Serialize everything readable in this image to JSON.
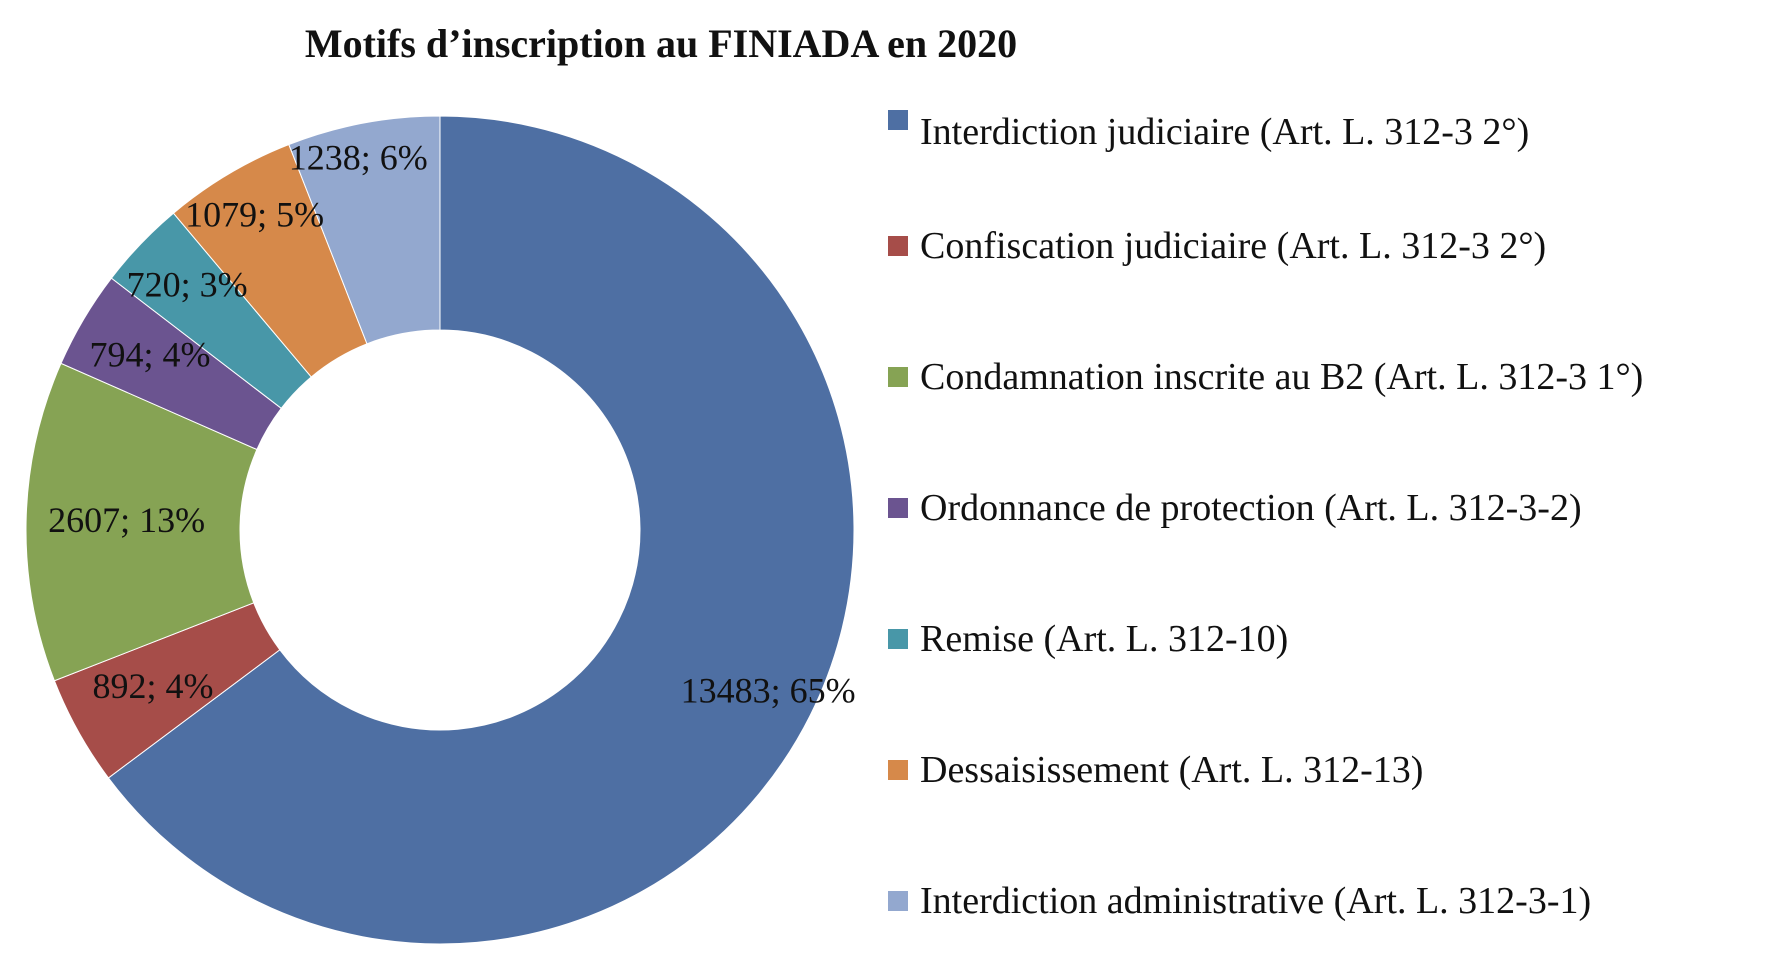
{
  "chart_data": {
    "type": "pie",
    "title": "Motifs d’inscription au FINIADA en 2020",
    "donut": true,
    "legend_position": "right",
    "slices": [
      {
        "label": "Interdiction judiciaire (Art. L. 312-3 2°)",
        "value": 13483,
        "percent": 65,
        "data_label": "13483; 65%",
        "color": "#4e6fa3"
      },
      {
        "label": "Confiscation judiciaire (Art. L. 312-3 2°)",
        "value": 892,
        "percent": 4,
        "data_label": "892; 4%",
        "color": "#a64d49"
      },
      {
        "label": "Condamnation inscrite au B2 (Art. L. 312-3 1°)",
        "value": 2607,
        "percent": 13,
        "data_label": "2607; 13%",
        "color": "#86a354"
      },
      {
        "label": "Ordonnance de protection (Art. L. 312-3-2)",
        "value": 794,
        "percent": 4,
        "data_label": "794; 4%",
        "color": "#6b5490"
      },
      {
        "label": "Remise  (Art. L. 312-10)",
        "value": 720,
        "percent": 3,
        "data_label": "720; 3%",
        "color": "#4897a8"
      },
      {
        "label": "Dessaisissement (Art. L. 312-13)",
        "value": 1079,
        "percent": 5,
        "data_label": "1079; 5%",
        "color": "#d6894a"
      },
      {
        "label": "Interdiction administrative  (Art. L. 312-3-1)",
        "value": 1238,
        "percent": 6,
        "data_label": "1238; 6%",
        "color": "#93a8cf"
      }
    ]
  }
}
